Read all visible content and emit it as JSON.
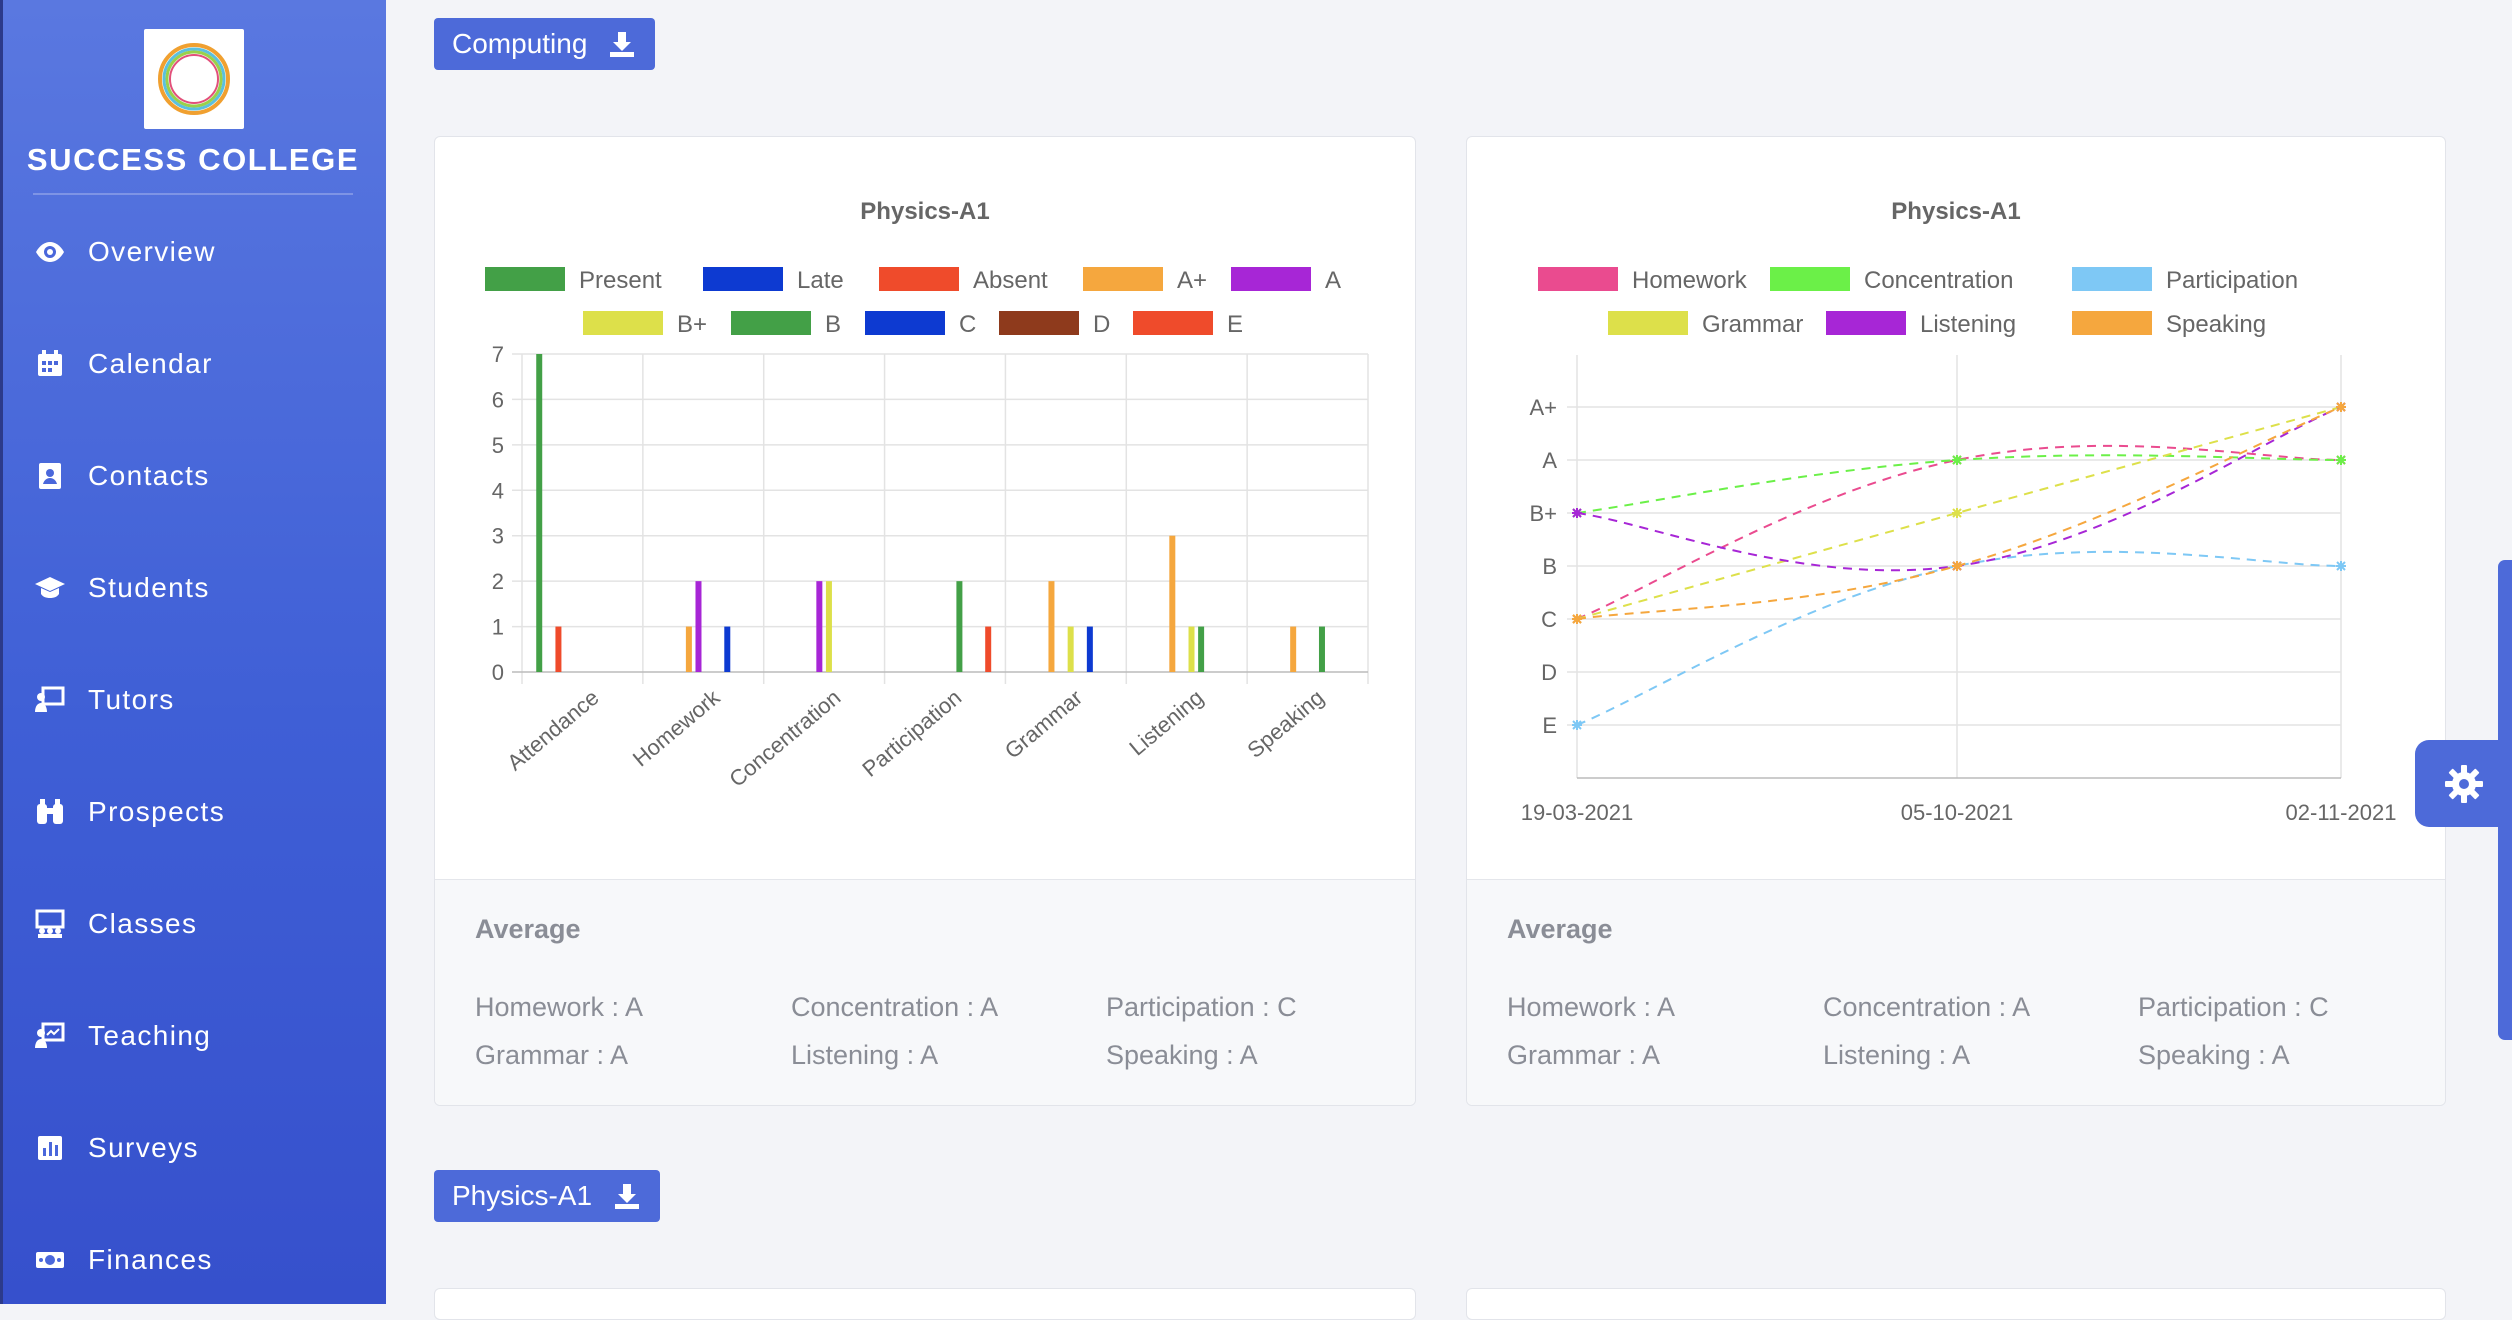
{
  "sidebar": {
    "brand": "SUCCESS COLLEGE",
    "items": [
      {
        "label": "Overview",
        "icon": "eye-icon"
      },
      {
        "label": "Calendar",
        "icon": "calendar-icon"
      },
      {
        "label": "Contacts",
        "icon": "contact-book-icon"
      },
      {
        "label": "Students",
        "icon": "graduation-cap-icon"
      },
      {
        "label": "Tutors",
        "icon": "teacher-board-icon"
      },
      {
        "label": "Prospects",
        "icon": "binoculars-icon"
      },
      {
        "label": "Classes",
        "icon": "classroom-icon"
      },
      {
        "label": "Teaching",
        "icon": "teaching-board-icon"
      },
      {
        "label": "Surveys",
        "icon": "bar-chart-icon"
      },
      {
        "label": "Finances",
        "icon": "money-icon"
      }
    ]
  },
  "sections": [
    {
      "label": "Computing",
      "icon": "download-icon"
    },
    {
      "label": "Physics-A1",
      "icon": "download-icon"
    }
  ],
  "colors": {
    "accent": "#4d6ad9",
    "sidebar": "#4a67db"
  },
  "chart_data": [
    {
      "type": "bar",
      "title": "Physics-A1",
      "categories": [
        "Attendance",
        "Homework",
        "Concentration",
        "Participation",
        "Grammar",
        "Listening",
        "Speaking"
      ],
      "ylim": [
        0,
        7
      ],
      "yticks": [
        "0",
        "1",
        "2",
        "3",
        "4",
        "5",
        "6",
        "7"
      ],
      "legend_position": "top",
      "grid": true,
      "series": [
        {
          "name": "Present",
          "color": "#43a047",
          "values": [
            7,
            0,
            0,
            0,
            0,
            0,
            0
          ]
        },
        {
          "name": "Late",
          "color": "#0d3ad1",
          "values": [
            0,
            0,
            0,
            0,
            0,
            0,
            0
          ]
        },
        {
          "name": "Absent",
          "color": "#ef4b2b",
          "values": [
            1,
            0,
            0,
            0,
            0,
            0,
            0
          ]
        },
        {
          "name": "A+",
          "color": "#f5a73e",
          "values": [
            0,
            1,
            0,
            0,
            2,
            3,
            1
          ]
        },
        {
          "name": "A",
          "color": "#a726d6",
          "values": [
            0,
            2,
            2,
            0,
            0,
            0,
            0
          ]
        },
        {
          "name": "B+",
          "color": "#dde04a",
          "values": [
            0,
            0,
            2,
            0,
            1,
            1,
            0
          ]
        },
        {
          "name": "B",
          "color": "#43a047",
          "values": [
            0,
            0,
            0,
            2,
            0,
            1,
            1
          ]
        },
        {
          "name": "C",
          "color": "#0d3ad1",
          "values": [
            0,
            1,
            0,
            0,
            1,
            0,
            0
          ]
        },
        {
          "name": "D",
          "color": "#8e3a1c",
          "values": [
            0,
            0,
            0,
            0,
            0,
            0,
            0
          ]
        },
        {
          "name": "E",
          "color": "#ef4b2b",
          "values": [
            0,
            0,
            0,
            1,
            0,
            0,
            0
          ]
        }
      ]
    },
    {
      "type": "line",
      "title": "Physics-A1",
      "x": [
        "19-03-2021",
        "05-10-2021",
        "02-11-2021"
      ],
      "yticks": [
        "A+",
        "A",
        "B+",
        "B",
        "C",
        "D",
        "E"
      ],
      "legend_position": "top",
      "grid": true,
      "series": [
        {
          "name": "Homework",
          "color": "#ea4b8f",
          "values": [
            "C",
            "A",
            "A"
          ]
        },
        {
          "name": "Concentration",
          "color": "#6bf048",
          "values": [
            "B+",
            "A",
            "A"
          ]
        },
        {
          "name": "Participation",
          "color": "#7ec8f5",
          "values": [
            "E",
            "B",
            "B"
          ]
        },
        {
          "name": "Grammar",
          "color": "#dde04a",
          "values": [
            "C",
            "B+",
            "A+"
          ]
        },
        {
          "name": "Listening",
          "color": "#a726d6",
          "values": [
            "B+",
            "B",
            "A+"
          ]
        },
        {
          "name": "Speaking",
          "color": "#f5a73e",
          "values": [
            "C",
            "B",
            "A+"
          ]
        }
      ]
    }
  ],
  "averages": {
    "title": "Average",
    "items": [
      "Homework : A",
      "Concentration : A",
      "Participation : C",
      "Grammar : A",
      "Listening : A",
      "Speaking : A"
    ]
  }
}
